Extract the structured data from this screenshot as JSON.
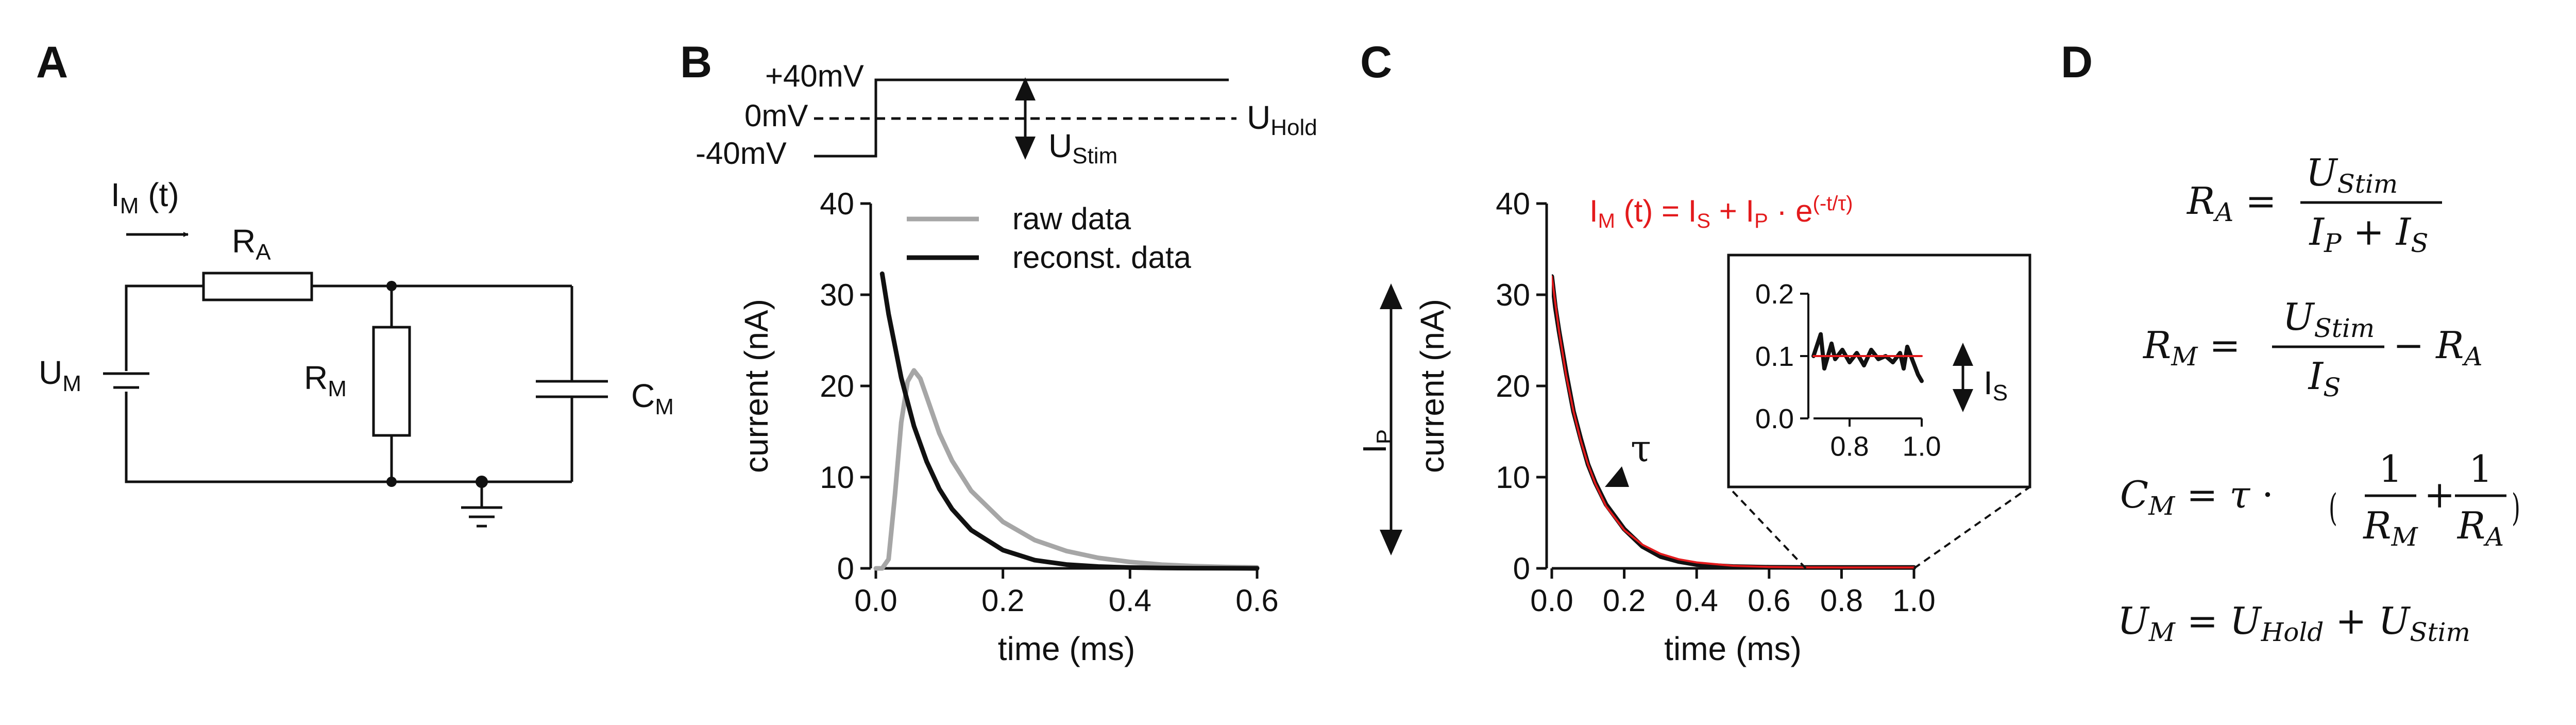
{
  "panels": {
    "a": "A",
    "b": "B",
    "c": "C",
    "d": "D"
  },
  "colors": {
    "raw": "#a6a6a6",
    "reconst": "#111111",
    "fit": "#e31a1c",
    "ink": "#111111"
  },
  "circuit": {
    "current_label": "I",
    "current_sub": "M",
    "current_arg": " (t)",
    "ra": "R",
    "ra_sub": "A",
    "rm": "R",
    "rm_sub": "M",
    "cm": "C",
    "cm_sub": "M",
    "um": "U",
    "um_sub": "M"
  },
  "protocol": {
    "v_high": "+40mV",
    "v_zero": "0mV",
    "v_low": "-40mV",
    "ustim": "U",
    "ustim_sub": "Stim",
    "uhold": "U",
    "uhold_sub": "Hold"
  },
  "chart_data": [
    {
      "type": "line",
      "panel": "B",
      "xlabel": "time (ms)",
      "ylabel": "current (nA)",
      "xlim": [
        0,
        0.6
      ],
      "ylim": [
        0,
        40
      ],
      "xticks": [
        "0.0",
        "0.2",
        "0.4",
        "0.6"
      ],
      "yticks": [
        "0",
        "10",
        "20",
        "30",
        "40"
      ],
      "legend_position": "top-right",
      "series": [
        {
          "name": "raw data",
          "x": [
            0,
            0.01,
            0.02,
            0.03,
            0.04,
            0.05,
            0.06,
            0.07,
            0.08,
            0.1,
            0.12,
            0.15,
            0.2,
            0.25,
            0.3,
            0.35,
            0.4,
            0.45,
            0.5,
            0.55,
            0.6
          ],
          "y": [
            0,
            0,
            1,
            8,
            16,
            20.5,
            21.7,
            20.8,
            18.8,
            14.8,
            11.8,
            8.5,
            5.1,
            3.1,
            1.9,
            1.15,
            0.7,
            0.4,
            0.25,
            0.15,
            0.1
          ]
        },
        {
          "name": "reconst. data",
          "x": [
            0.01,
            0.02,
            0.04,
            0.06,
            0.08,
            0.1,
            0.12,
            0.15,
            0.2,
            0.25,
            0.3,
            0.35,
            0.4,
            0.45,
            0.5,
            0.55,
            0.6
          ],
          "y": [
            32.3,
            27.9,
            20.9,
            15.6,
            11.7,
            8.7,
            6.5,
            4.2,
            2.0,
            0.9,
            0.42,
            0.2,
            0.09,
            0.04,
            0.02,
            0.01,
            0
          ]
        }
      ]
    },
    {
      "type": "line",
      "panel": "C",
      "xlabel": "time (ms)",
      "ylabel": "current (nA)",
      "xlim": [
        0,
        1.0
      ],
      "ylim": [
        0,
        40
      ],
      "xticks": [
        "0.0",
        "0.2",
        "0.4",
        "0.6",
        "0.8",
        "1.0"
      ],
      "yticks": [
        "0",
        "10",
        "20",
        "30",
        "40"
      ],
      "series": [
        {
          "name": "data",
          "x": [
            0,
            0.01,
            0.02,
            0.04,
            0.06,
            0.08,
            0.1,
            0.12,
            0.15,
            0.2,
            0.25,
            0.3,
            0.35,
            0.4,
            0.5,
            0.6,
            0.7,
            0.8,
            0.9,
            1.0
          ],
          "y": [
            32.0,
            28.6,
            26.0,
            21.4,
            17.2,
            14.2,
            11.4,
            9.4,
            7.0,
            4.3,
            2.4,
            1.3,
            0.75,
            0.42,
            0.2,
            0.12,
            0.1,
            0.1,
            0.1,
            0.1
          ]
        },
        {
          "name": "fit",
          "x": [
            0,
            0.02,
            0.04,
            0.06,
            0.08,
            0.1,
            0.12,
            0.15,
            0.2,
            0.25,
            0.3,
            0.35,
            0.4,
            0.5,
            0.6,
            0.7,
            0.8,
            0.9,
            1.0
          ],
          "y": [
            32.0,
            26.0,
            21.1,
            17.2,
            14.0,
            11.4,
            9.3,
            6.8,
            4.2,
            2.6,
            1.6,
            1.0,
            0.65,
            0.28,
            0.15,
            0.11,
            0.1,
            0.1,
            0.1
          ]
        }
      ],
      "annotations": {
        "formula": "I",
        "formula_sub": "M",
        "formula_rest": " (t) = I",
        "is_sub": "S",
        "plus": " + I",
        "ip_sub": "P",
        "exp": " · e",
        "exp_sup": "(-t/τ)",
        "tau": "τ",
        "ip": "I",
        "ip_sub2": "P"
      }
    },
    {
      "type": "line",
      "panel": "C-inset",
      "xlim": [
        0.7,
        1.0
      ],
      "ylim": [
        0,
        0.2
      ],
      "xticks": [
        "0.8",
        "1.0"
      ],
      "yticks": [
        "0.0",
        "0.1",
        "0.2"
      ],
      "series": [
        {
          "name": "data",
          "x": [
            0.7,
            0.72,
            0.73,
            0.75,
            0.76,
            0.78,
            0.8,
            0.82,
            0.84,
            0.86,
            0.88,
            0.9,
            0.92,
            0.94,
            0.95,
            0.96,
            0.97,
            0.98,
            0.99,
            1.0
          ],
          "y": [
            0.1,
            0.135,
            0.08,
            0.12,
            0.095,
            0.11,
            0.09,
            0.105,
            0.085,
            0.11,
            0.095,
            0.1,
            0.09,
            0.105,
            0.08,
            0.115,
            0.1,
            0.085,
            0.07,
            0.06
          ]
        },
        {
          "name": "fit",
          "x": [
            0.7,
            1.0
          ],
          "y": [
            0.1,
            0.1
          ]
        }
      ],
      "annotation": "I",
      "annotation_sub": "S"
    }
  ],
  "equations": {
    "ra_lhs": "R",
    "ra_lhs_sub": "A",
    "ra_num": "U",
    "ra_num_sub": "Stim",
    "ra_den_a": "I",
    "ra_den_a_sub": "P",
    "ra_den_b": "I",
    "ra_den_b_sub": "S",
    "rm_lhs": "R",
    "rm_lhs_sub": "M",
    "rm_num": "U",
    "rm_num_sub": "Stim",
    "rm_den": "I",
    "rm_den_sub": "S",
    "rm_minus": "R",
    "rm_minus_sub": "A",
    "cm_lhs": "C",
    "cm_lhs_sub": "M",
    "cm_tau": "τ",
    "one": "1",
    "cm_d1": "R",
    "cm_d1_sub": "M",
    "cm_d2": "R",
    "cm_d2_sub": "A",
    "um_lhs": "U",
    "um_lhs_sub": "M",
    "um_a": "U",
    "um_a_sub": "Hold",
    "um_b": "U",
    "um_b_sub": "Stim"
  }
}
